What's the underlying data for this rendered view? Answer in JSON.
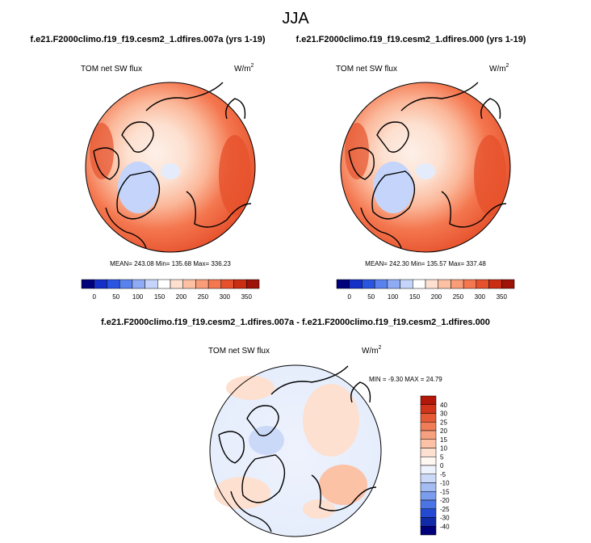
{
  "title": "JJA",
  "panels": [
    {
      "subtitle": "f.e21.F2000climo.f19_f19.cesm2_1.dfires.007a (yrs 1-19)",
      "left_label": "TOM net SW flux",
      "units": "W/m",
      "units_exp": "2",
      "stats": "MEAN= 243.08  Min= 135.68  Max= 336.23"
    },
    {
      "subtitle": "f.e21.F2000climo.f19_f19.cesm2_1.dfires.000 (yrs 1-19)",
      "left_label": "TOM net SW flux",
      "units": "W/m",
      "units_exp": "2",
      "stats": "MEAN= 242.30  Min= 135.57  Max= 337.48"
    }
  ],
  "colorbar": {
    "labels": [
      "0",
      "50",
      "100",
      "150",
      "200",
      "250",
      "300",
      "350"
    ],
    "colors": [
      "#00007a",
      "#1530c8",
      "#2a55e0",
      "#5a82ee",
      "#8fabf4",
      "#c4d4fa",
      "#ffffff",
      "#fde0d0",
      "#fcc0a3",
      "#f99c78",
      "#f4774f",
      "#e6512c",
      "#c92d12",
      "#9e1208"
    ]
  },
  "difference": {
    "title": "f.e21.F2000climo.f19_f19.cesm2_1.dfires.007a - f.e21.F2000climo.f19_f19.cesm2_1.dfires.000",
    "left_label": "TOM net SW flux",
    "units": "W/m",
    "units_exp": "2",
    "stats": "MIN = -9.30  MAX =  24.79",
    "colorbar_labels": [
      "40",
      "30",
      "25",
      "20",
      "15",
      "10",
      "5",
      "0",
      "-5",
      "-10",
      "-15",
      "-20",
      "-25",
      "-30",
      "-40"
    ],
    "colorbar_colors": [
      "#b2170a",
      "#d0341a",
      "#e55a35",
      "#f07d58",
      "#f7a07f",
      "#fbc2a6",
      "#fde0d0",
      "#fff7f2",
      "#eef2fd",
      "#cbd9f8",
      "#a3bcf2",
      "#7b9ded",
      "#4d74e4",
      "#2449d3",
      "#102aa8",
      "#00007a"
    ]
  }
}
